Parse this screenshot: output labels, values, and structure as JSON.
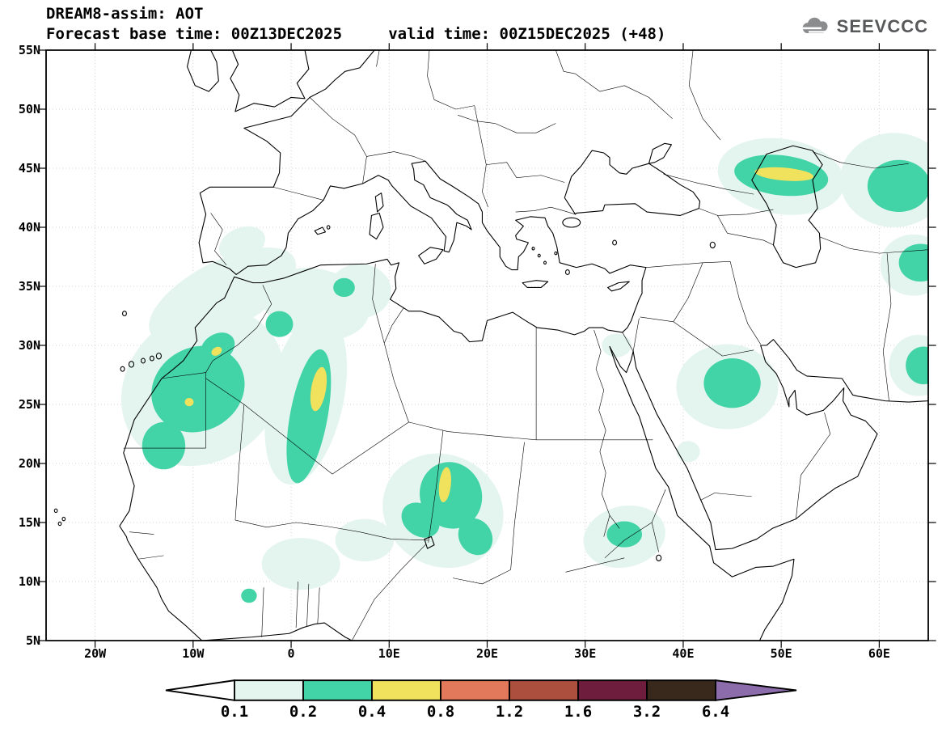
{
  "header": {
    "title": "DREAM8-assim: AOT",
    "subtitle": "Forecast base time: 00Z13DEC2025     valid time: 00Z15DEC2025 (+48)"
  },
  "logo": {
    "text": "SEEVCCC"
  },
  "axes": {
    "lat_ticks": [
      {
        "label": "55N",
        "deg": 55
      },
      {
        "label": "50N",
        "deg": 50
      },
      {
        "label": "45N",
        "deg": 45
      },
      {
        "label": "40N",
        "deg": 40
      },
      {
        "label": "35N",
        "deg": 35
      },
      {
        "label": "30N",
        "deg": 30
      },
      {
        "label": "25N",
        "deg": 25
      },
      {
        "label": "20N",
        "deg": 20
      },
      {
        "label": "15N",
        "deg": 15
      },
      {
        "label": "10N",
        "deg": 10
      },
      {
        "label": "5N",
        "deg": 5
      }
    ],
    "lon_ticks": [
      {
        "label": "20W",
        "deg": -20
      },
      {
        "label": "10W",
        "deg": -10
      },
      {
        "label": "0",
        "deg": 0
      },
      {
        "label": "10E",
        "deg": 10
      },
      {
        "label": "20E",
        "deg": 20
      },
      {
        "label": "30E",
        "deg": 30
      },
      {
        "label": "40E",
        "deg": 40
      },
      {
        "label": "50E",
        "deg": 50
      },
      {
        "label": "60E",
        "deg": 60
      }
    ],
    "lon_range": [
      -25,
      65
    ],
    "lat_range": [
      5,
      55
    ]
  },
  "colorbar": {
    "labels": [
      "0.1",
      "0.2",
      "0.4",
      "0.8",
      "1.2",
      "1.6",
      "3.2",
      "6.4"
    ],
    "box_colors": [
      "#e4f5ef",
      "#42d3a6",
      "#f1e25e",
      "#e2795a",
      "#ad4f3e",
      "#6e1e3c",
      "#38291c"
    ],
    "arrow_left_color": "#ffffff",
    "arrow_right_color": "#8d6cab"
  },
  "chart_data": {
    "type": "contour-map",
    "variable": "AOT",
    "model": "DREAM8-assim",
    "base_time": "00Z13DEC2025",
    "valid_time": "00Z15DEC2025",
    "forecast_hour": "+48",
    "levels": [
      0.1,
      0.2,
      0.4,
      0.8,
      1.2,
      1.6,
      3.2,
      6.4
    ],
    "lon_range": [
      -25,
      65
    ],
    "lat_range": [
      5,
      55
    ],
    "region_columns": [
      "lon",
      "lat",
      "rx_deg",
      "ry_deg",
      "rotate_deg",
      "band"
    ],
    "regions": [
      [
        -9,
        26.5,
        8.5,
        6.5,
        -18,
        "0.1-0.2"
      ],
      [
        -7,
        34.2,
        8.0,
        3.0,
        -22,
        "0.1-0.2"
      ],
      [
        -5,
        38.6,
        2.4,
        1.4,
        -15,
        "0.1-0.2"
      ],
      [
        1.5,
        25.5,
        3.8,
        7.5,
        16,
        "0.1-0.2"
      ],
      [
        2.5,
        33.5,
        5.5,
        3.0,
        8,
        "0.1-0.2"
      ],
      [
        7,
        34.6,
        3.2,
        2.3,
        0,
        "0.1-0.2"
      ],
      [
        1,
        11.5,
        4.0,
        2.2,
        0,
        "0.1-0.2"
      ],
      [
        7.5,
        13.5,
        3.0,
        1.8,
        0,
        "0.1-0.2"
      ],
      [
        15.5,
        16,
        6.2,
        4.8,
        10,
        "0.1-0.2"
      ],
      [
        34,
        13.8,
        4.2,
        2.6,
        -8,
        "0.1-0.2"
      ],
      [
        33.2,
        30,
        1.5,
        1.0,
        0,
        "0.1-0.2"
      ],
      [
        44.5,
        26.5,
        5.2,
        3.6,
        0,
        "0.1-0.2"
      ],
      [
        40.5,
        21,
        1.2,
        0.9,
        0,
        "0.1-0.2"
      ],
      [
        50,
        44.3,
        6.5,
        3.2,
        6,
        "0.1-0.2"
      ],
      [
        61.5,
        44,
        5.5,
        4.0,
        0,
        "0.1-0.2"
      ],
      [
        63.5,
        36.8,
        3.4,
        2.6,
        0,
        "0.1-0.2"
      ],
      [
        64,
        28.3,
        3.0,
        2.6,
        0,
        "0.1-0.2"
      ],
      [
        -9.5,
        26.3,
        4.8,
        3.6,
        -12,
        "0.2-0.4"
      ],
      [
        -13,
        21.5,
        2.2,
        2.0,
        0,
        "0.2-0.4"
      ],
      [
        -7.5,
        29.8,
        1.8,
        1.2,
        -20,
        "0.2-0.4"
      ],
      [
        1.8,
        24,
        1.9,
        5.8,
        13,
        "0.2-0.4"
      ],
      [
        -1.2,
        31.8,
        1.4,
        1.1,
        0,
        "0.2-0.4"
      ],
      [
        5.4,
        34.9,
        1.1,
        0.8,
        0,
        "0.2-0.4"
      ],
      [
        16.3,
        17.3,
        3.2,
        2.8,
        12,
        "0.2-0.4"
      ],
      [
        13.2,
        15.2,
        2.0,
        1.4,
        20,
        "0.2-0.4"
      ],
      [
        18.8,
        13.8,
        1.8,
        1.5,
        25,
        "0.2-0.4"
      ],
      [
        45,
        26.8,
        2.9,
        2.1,
        0,
        "0.2-0.4"
      ],
      [
        50,
        44.4,
        4.8,
        1.7,
        5,
        "0.2-0.4"
      ],
      [
        62,
        43.5,
        3.2,
        2.2,
        0,
        "0.2-0.4"
      ],
      [
        64.2,
        37,
        2.2,
        1.6,
        0,
        "0.2-0.4"
      ],
      [
        64.5,
        28.3,
        1.8,
        1.6,
        0,
        "0.2-0.4"
      ],
      [
        34,
        14,
        1.8,
        1.1,
        0,
        "0.2-0.4"
      ],
      [
        -4.3,
        8.8,
        0.8,
        0.6,
        0,
        "0.2-0.4"
      ],
      [
        -7.6,
        29.5,
        0.55,
        0.35,
        -20,
        "0.4-0.8"
      ],
      [
        -10.4,
        25.2,
        0.45,
        0.35,
        0,
        "0.4-0.8"
      ],
      [
        2.8,
        26.3,
        0.75,
        1.9,
        12,
        "0.4-0.8"
      ],
      [
        15.7,
        18.2,
        0.6,
        1.5,
        8,
        "0.4-0.8"
      ],
      [
        50.3,
        44.5,
        3.0,
        0.55,
        4,
        "0.4-0.8"
      ]
    ]
  }
}
